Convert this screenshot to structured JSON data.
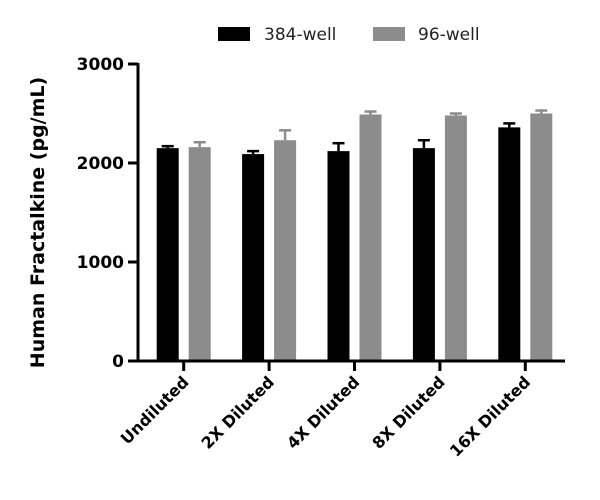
{
  "chart_data": {
    "type": "bar",
    "title": "",
    "xlabel": "",
    "ylabel": "Human Fractalkine (pg/mL)",
    "ylim": [
      0,
      3000
    ],
    "yticks": [
      0,
      1000,
      2000,
      3000
    ],
    "categories": [
      "Undiluted",
      "2X Diluted",
      "4X Diluted",
      "8X Diluted",
      "16X Diluted"
    ],
    "series": [
      {
        "name": "384-well",
        "color": "#000000",
        "values": [
          2150,
          2090,
          2120,
          2150,
          2360
        ],
        "errors": [
          20,
          30,
          80,
          80,
          40
        ]
      },
      {
        "name": "96-well",
        "color": "#8c8c8c",
        "values": [
          2160,
          2230,
          2490,
          2480,
          2500
        ],
        "errors": [
          50,
          100,
          30,
          20,
          30
        ]
      }
    ],
    "legend_position": "top-center",
    "grid": false
  }
}
